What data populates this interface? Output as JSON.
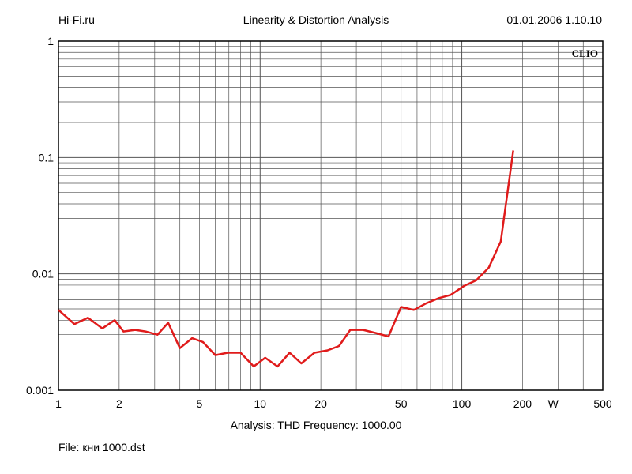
{
  "header": {
    "left": "Hi-Fi.ru",
    "center": "Linearity & Distortion Analysis",
    "right": "01.01.2006 1.10.10"
  },
  "footer": {
    "analysis": "Analysis: THD   Frequency: 1000.00",
    "file": "File: кни 1000.dst"
  },
  "chart_data": {
    "type": "line",
    "title": "Linearity & Distortion Analysis",
    "xlabel": "W",
    "ylabel": "",
    "x_scale": "log",
    "y_scale": "log",
    "xlim": [
      1,
      500
    ],
    "ylim": [
      0.001,
      1
    ],
    "grid": true,
    "brand_label": "CLIO",
    "x_tick_labels": [
      {
        "value": 1,
        "label": "1"
      },
      {
        "value": 2,
        "label": "2"
      },
      {
        "value": 5,
        "label": "5"
      },
      {
        "value": 10,
        "label": "10"
      },
      {
        "value": 20,
        "label": "20"
      },
      {
        "value": 50,
        "label": "50"
      },
      {
        "value": 100,
        "label": "100"
      },
      {
        "value": 200,
        "label": "200"
      },
      {
        "value": 500,
        "label": "500"
      }
    ],
    "y_tick_labels": [
      {
        "value": 1,
        "label": "1"
      },
      {
        "value": 0.1,
        "label": "0.1"
      },
      {
        "value": 0.01,
        "label": "0.01"
      },
      {
        "value": 0.001,
        "label": "0.001"
      }
    ],
    "series": [
      {
        "color": "#e01b1b",
        "x": [
          1.0,
          1.2,
          1.4,
          1.65,
          1.9,
          2.1,
          2.4,
          2.7,
          3.1,
          3.5,
          4.0,
          4.6,
          5.2,
          6.0,
          6.9,
          8.0,
          9.3,
          10.6,
          12.2,
          14.0,
          16.0,
          18.6,
          21.6,
          24.6,
          28.0,
          32.4,
          37.5,
          43.3,
          50.0,
          57.8,
          66.8,
          77.0,
          88.0,
          103.0,
          118.0,
          136.0,
          156.0,
          180.0
        ],
        "y": [
          0.0049,
          0.0037,
          0.0042,
          0.0034,
          0.004,
          0.0032,
          0.0033,
          0.0032,
          0.003,
          0.0038,
          0.0023,
          0.0028,
          0.0026,
          0.002,
          0.0021,
          0.0021,
          0.0016,
          0.0019,
          0.0016,
          0.0021,
          0.0017,
          0.0021,
          0.0022,
          0.0024,
          0.0033,
          0.0033,
          0.0031,
          0.0029,
          0.0052,
          0.0049,
          0.0056,
          0.0062,
          0.0066,
          0.0079,
          0.0088,
          0.0113,
          0.019,
          0.115
        ]
      }
    ]
  }
}
